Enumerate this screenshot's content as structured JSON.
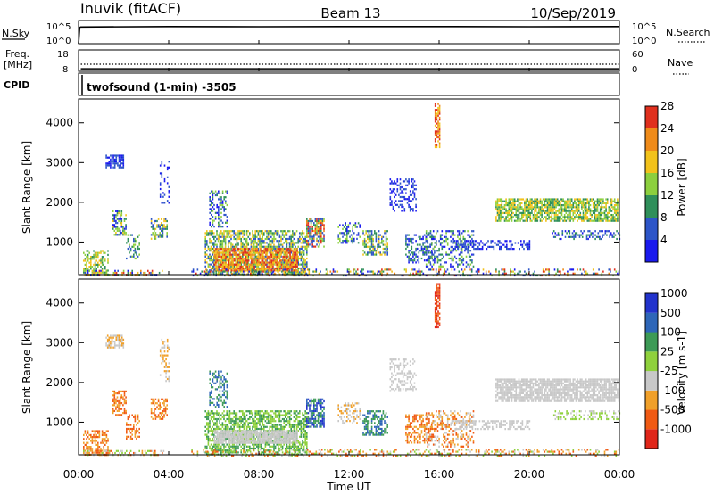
{
  "header": {
    "station": "Inuvik (fitACF)",
    "beam": "Beam 13",
    "date": "10/Sep/2019"
  },
  "panel_labels": {
    "nsky": "N.Sky",
    "nsearch": "N.Search",
    "freq_line1": "Freq.",
    "freq_line2": "[MHz]",
    "nave": "Nave",
    "cpid": "CPID",
    "cpid_name": "twofsound (1-min) -3505"
  },
  "colors": {
    "power": [
      "#1a1aee",
      "#2d55c8",
      "#2f8f5a",
      "#8ccf3e",
      "#f2c21b",
      "#ef8b1a",
      "#e0301e"
    ],
    "velocity": [
      "#e0261a",
      "#f05a14",
      "#f0a02a",
      "#c8c8c8",
      "#8fd13c",
      "#3d9a56",
      "#2e66b8",
      "#2233cc"
    ]
  },
  "chart_data": [
    {
      "type": "line",
      "name": "N.Sky / N.Search",
      "ylabel_left": "N.Sky",
      "ylabel_right": "N.Search",
      "left_ticks": [
        "10^5",
        "10^0"
      ],
      "right_ticks": [
        "10^5",
        "10^0"
      ],
      "series": [
        {
          "name": "N.Sky",
          "style": "solid",
          "x_hours": [
            0,
            0.05,
            0.1,
            4,
            8,
            12,
            16,
            20,
            24
          ],
          "level": [
            0.0,
            0.7,
            0.72,
            0.74,
            0.73,
            0.74,
            0.74,
            0.73,
            0.74
          ]
        }
      ]
    },
    {
      "type": "line",
      "name": "Freq / Nave",
      "ylabel_left": "Freq. [MHz]",
      "ylabel_right": "Nave",
      "left_ticks": [
        "18",
        "8"
      ],
      "right_ticks": [
        "60",
        "0"
      ],
      "series": [
        {
          "name": "Nave",
          "style": "dotted",
          "x_hours": [
            0.1,
            24
          ],
          "values": [
            20,
            20
          ]
        },
        {
          "name": "Freq",
          "style": "solid",
          "x_hours": [
            0.1,
            24
          ],
          "values": [
            9.2,
            9.2
          ]
        }
      ]
    },
    {
      "type": "heatmap",
      "name": "Power",
      "xlabel": "",
      "ylabel": "Slant Range [km]",
      "xlim": [
        0,
        24
      ],
      "ylim": [
        180,
        4600
      ],
      "yticks": [
        1000,
        2000,
        3000,
        4000
      ],
      "colorbar_label": "Power [dB]",
      "colorbar_ticks": [
        "4",
        "8",
        "12",
        "16",
        "20",
        "24",
        "28"
      ],
      "blobs": [
        {
          "x": [
            0.2,
            1.3
          ],
          "r": [
            200,
            800
          ],
          "lvl": [
            2,
            4
          ],
          "d": 0.55
        },
        {
          "x": [
            0.2,
            3.8
          ],
          "r": [
            180,
            300
          ],
          "lvl": [
            0,
            6
          ],
          "d": 0.4
        },
        {
          "x": [
            1.2,
            2.0
          ],
          "r": [
            2900,
            3200
          ],
          "lvl": [
            0,
            1
          ],
          "d": 0.7
        },
        {
          "x": [
            1.5,
            2.1
          ],
          "r": [
            1200,
            1800
          ],
          "lvl": [
            0,
            4
          ],
          "d": 0.55
        },
        {
          "x": [
            2.1,
            2.7
          ],
          "r": [
            600,
            1200
          ],
          "lvl": [
            1,
            3
          ],
          "d": 0.4
        },
        {
          "x": [
            3.2,
            3.9
          ],
          "r": [
            1100,
            1600
          ],
          "lvl": [
            1,
            4
          ],
          "d": 0.5
        },
        {
          "x": [
            3.6,
            4.0
          ],
          "r": [
            2000,
            3100
          ],
          "lvl": [
            0,
            1
          ],
          "d": 0.25
        },
        {
          "x": [
            5.6,
            10.1
          ],
          "r": [
            180,
            1300
          ],
          "lvl": [
            1,
            4
          ],
          "d": 0.65
        },
        {
          "x": [
            6.0,
            9.7
          ],
          "r": [
            300,
            850
          ],
          "lvl": [
            4,
            6
          ],
          "d": 0.75
        },
        {
          "x": [
            5.8,
            6.6
          ],
          "r": [
            1400,
            2300
          ],
          "lvl": [
            0,
            3
          ],
          "d": 0.45
        },
        {
          "x": [
            10.1,
            10.9
          ],
          "r": [
            900,
            1600
          ],
          "lvl": [
            1,
            6
          ],
          "d": 0.7
        },
        {
          "x": [
            11.5,
            12.5
          ],
          "r": [
            1000,
            1500
          ],
          "lvl": [
            0,
            3
          ],
          "d": 0.4
        },
        {
          "x": [
            12.6,
            13.7
          ],
          "r": [
            700,
            1300
          ],
          "lvl": [
            1,
            4
          ],
          "d": 0.5
        },
        {
          "x": [
            13.8,
            15.0
          ],
          "r": [
            1800,
            2600
          ],
          "lvl": [
            0,
            1
          ],
          "d": 0.35
        },
        {
          "x": [
            14.5,
            15.8
          ],
          "r": [
            500,
            1200
          ],
          "lvl": [
            0,
            2
          ],
          "d": 0.45
        },
        {
          "x": [
            15.8,
            16.0
          ],
          "r": [
            3400,
            4500
          ],
          "lvl": [
            4,
            6
          ],
          "d": 0.7
        },
        {
          "x": [
            15.4,
            17.5
          ],
          "r": [
            400,
            1300
          ],
          "lvl": [
            0,
            3
          ],
          "d": 0.35
        },
        {
          "x": [
            16.5,
            20.0
          ],
          "r": [
            850,
            1050
          ],
          "lvl": [
            0,
            1
          ],
          "d": 0.45
        },
        {
          "x": [
            18.5,
            24.0
          ],
          "r": [
            1550,
            2100
          ],
          "lvl": [
            2,
            4
          ],
          "d": 0.75
        },
        {
          "x": [
            21.0,
            24.0
          ],
          "r": [
            1100,
            1300
          ],
          "lvl": [
            0,
            2
          ],
          "d": 0.35
        },
        {
          "x": [
            5.0,
            24.0
          ],
          "r": [
            180,
            330
          ],
          "lvl": [
            0,
            6
          ],
          "d": 0.3
        }
      ]
    },
    {
      "type": "heatmap",
      "name": "Velocity",
      "xlabel": "Time UT",
      "ylabel": "Slant Range [km]",
      "xlim": [
        0,
        24
      ],
      "ylim": [
        180,
        4600
      ],
      "yticks": [
        1000,
        2000,
        3000,
        4000
      ],
      "xticks": [
        "00:00",
        "04:00",
        "08:00",
        "12:00",
        "16:00",
        "20:00",
        "00:00"
      ],
      "colorbar_label": "Velocity [m s-1]",
      "colorbar_ticks": [
        "-1000",
        "-500",
        "-100",
        "-25",
        "25",
        "100",
        "500",
        "1000"
      ],
      "blobs": [
        {
          "x": [
            0.2,
            1.3
          ],
          "r": [
            200,
            800
          ],
          "lvl": [
            1,
            2
          ],
          "d": 0.55
        },
        {
          "x": [
            0.2,
            3.8
          ],
          "r": [
            180,
            300
          ],
          "lvl": [
            1,
            4
          ],
          "d": 0.4
        },
        {
          "x": [
            1.2,
            2.0
          ],
          "r": [
            2900,
            3200
          ],
          "lvl": [
            2,
            3
          ],
          "d": 0.7
        },
        {
          "x": [
            1.5,
            2.1
          ],
          "r": [
            1200,
            1800
          ],
          "lvl": [
            1,
            2
          ],
          "d": 0.55
        },
        {
          "x": [
            2.1,
            2.7
          ],
          "r": [
            600,
            1200
          ],
          "lvl": [
            1,
            2
          ],
          "d": 0.4
        },
        {
          "x": [
            3.2,
            3.9
          ],
          "r": [
            1100,
            1600
          ],
          "lvl": [
            1,
            2
          ],
          "d": 0.5
        },
        {
          "x": [
            3.6,
            4.0
          ],
          "r": [
            2000,
            3100
          ],
          "lvl": [
            2,
            3
          ],
          "d": 0.25
        },
        {
          "x": [
            5.6,
            10.1
          ],
          "r": [
            180,
            1300
          ],
          "lvl": [
            4,
            5
          ],
          "d": 0.6
        },
        {
          "x": [
            6.0,
            9.7
          ],
          "r": [
            500,
            800
          ],
          "lvl": [
            3,
            3
          ],
          "d": 0.85
        },
        {
          "x": [
            5.8,
            6.6
          ],
          "r": [
            1400,
            2300
          ],
          "lvl": [
            5,
            6
          ],
          "d": 0.45
        },
        {
          "x": [
            10.1,
            10.9
          ],
          "r": [
            900,
            1600
          ],
          "lvl": [
            5,
            7
          ],
          "d": 0.7
        },
        {
          "x": [
            11.5,
            12.5
          ],
          "r": [
            1000,
            1500
          ],
          "lvl": [
            2,
            3
          ],
          "d": 0.4
        },
        {
          "x": [
            12.6,
            13.7
          ],
          "r": [
            700,
            1300
          ],
          "lvl": [
            5,
            6
          ],
          "d": 0.5
        },
        {
          "x": [
            13.8,
            15.0
          ],
          "r": [
            1800,
            2600
          ],
          "lvl": [
            3,
            3
          ],
          "d": 0.35
        },
        {
          "x": [
            14.5,
            15.8
          ],
          "r": [
            500,
            1200
          ],
          "lvl": [
            1,
            2
          ],
          "d": 0.45
        },
        {
          "x": [
            15.8,
            16.0
          ],
          "r": [
            3400,
            4500
          ],
          "lvl": [
            0,
            1
          ],
          "d": 0.7
        },
        {
          "x": [
            15.4,
            17.5
          ],
          "r": [
            400,
            1300
          ],
          "lvl": [
            1,
            3
          ],
          "d": 0.35
        },
        {
          "x": [
            16.5,
            20.0
          ],
          "r": [
            850,
            1050
          ],
          "lvl": [
            3,
            3
          ],
          "d": 0.45
        },
        {
          "x": [
            18.5,
            24.0
          ],
          "r": [
            1550,
            2100
          ],
          "lvl": [
            3,
            3
          ],
          "d": 0.8
        },
        {
          "x": [
            21.0,
            24.0
          ],
          "r": [
            1100,
            1300
          ],
          "lvl": [
            3,
            4
          ],
          "d": 0.35
        },
        {
          "x": [
            5.0,
            24.0
          ],
          "r": [
            180,
            330
          ],
          "lvl": [
            1,
            4
          ],
          "d": 0.3
        }
      ]
    }
  ]
}
